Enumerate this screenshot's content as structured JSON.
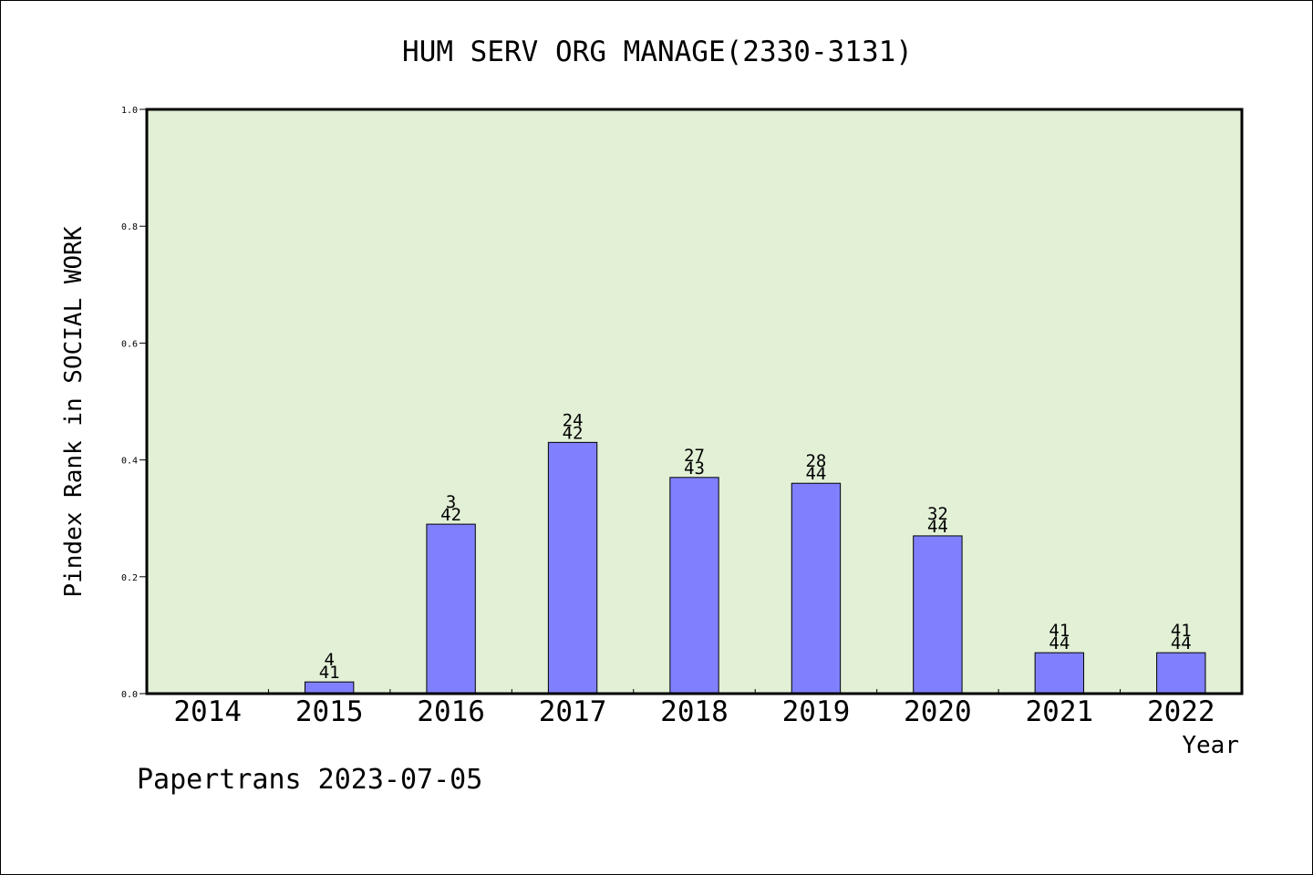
{
  "chart_data": {
    "type": "bar",
    "title": "HUM SERV ORG MANAGE(2330-3131)",
    "xlabel": "Year",
    "ylabel": "Pindex Rank in SOCIAL WORK",
    "categories": [
      "2014",
      "2015",
      "2016",
      "2017",
      "2018",
      "2019",
      "2020",
      "2021",
      "2022"
    ],
    "values": [
      0,
      0.02,
      0.29,
      0.43,
      0.37,
      0.36,
      0.27,
      0.07,
      0.07
    ],
    "bar_labels": [
      null,
      {
        "rank": "4",
        "total": "41"
      },
      {
        "rank": "3",
        "total": "42"
      },
      {
        "rank": "24",
        "total": "42"
      },
      {
        "rank": "27",
        "total": "43"
      },
      {
        "rank": "28",
        "total": "44"
      },
      {
        "rank": "32",
        "total": "44"
      },
      {
        "rank": "41",
        "total": "44"
      },
      {
        "rank": "41",
        "total": "44"
      }
    ],
    "ylim": [
      0,
      1.0
    ],
    "yticks": [
      "0.0",
      "0.2",
      "0.4",
      "0.6",
      "0.8",
      "1.0"
    ],
    "grid": false,
    "colors": {
      "plot_background": "#e2f0d6",
      "bar_fill": "#8080ff",
      "bar_stroke": "#000000"
    }
  },
  "footer": "Papertrans 2023-07-05"
}
